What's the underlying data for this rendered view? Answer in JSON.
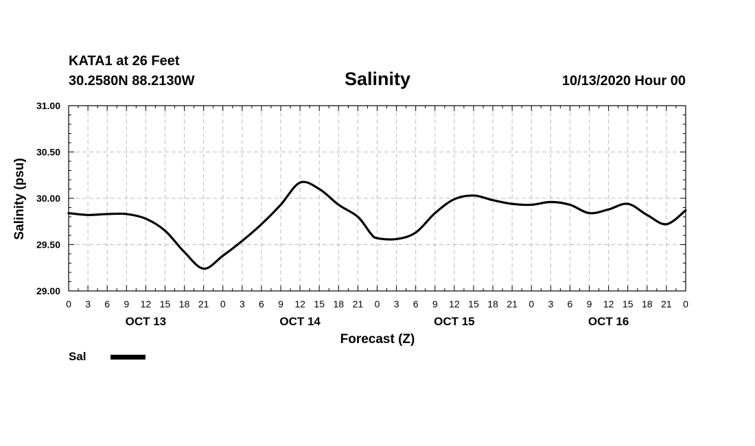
{
  "header": {
    "station": "KATA1 at 26 Feet",
    "coords": "30.2580N 88.2130W",
    "title": "Salinity",
    "issued": "10/13/2020 Hour 00"
  },
  "legend": {
    "label": "Sal"
  },
  "colors": {
    "line": "#000000",
    "grid": "#bbbbbb",
    "background": "#ffffff"
  },
  "chart_data": {
    "type": "line",
    "title": "Salinity",
    "xlabel": "Forecast (Z)",
    "ylabel": "Salinity (psu)",
    "ylim": [
      29.0,
      31.0
    ],
    "yticks": [
      "29.00",
      "29.50",
      "30.00",
      "30.50",
      "31.00"
    ],
    "xlim": [
      0,
      96
    ],
    "xtick_labels": [
      "0",
      "3",
      "6",
      "9",
      "12",
      "15",
      "18",
      "21",
      "0",
      "3",
      "6",
      "9",
      "12",
      "15",
      "18",
      "21",
      "0",
      "3",
      "6",
      "9",
      "12",
      "15",
      "18",
      "21",
      "0",
      "3",
      "6",
      "9",
      "12",
      "15",
      "18",
      "21",
      "0"
    ],
    "day_labels": [
      {
        "label": "OCT 13",
        "hour": 12
      },
      {
        "label": "OCT 14",
        "hour": 36
      },
      {
        "label": "OCT 15",
        "hour": 60
      },
      {
        "label": "OCT 16",
        "hour": 84
      }
    ],
    "grid": true,
    "legend_position": "bottom-left",
    "series": [
      {
        "name": "Sal",
        "x": [
          0,
          3,
          6,
          9,
          12,
          15,
          18,
          21,
          24,
          27,
          30,
          33,
          36,
          39,
          42,
          45,
          47,
          48,
          51,
          54,
          57,
          60,
          63,
          66,
          69,
          72,
          75,
          78,
          81,
          84,
          87,
          90,
          93,
          96
        ],
        "y": [
          29.84,
          29.82,
          29.83,
          29.83,
          29.78,
          29.65,
          29.42,
          29.24,
          29.38,
          29.54,
          29.72,
          29.93,
          30.17,
          30.1,
          29.93,
          29.8,
          29.62,
          29.57,
          29.56,
          29.63,
          29.84,
          29.99,
          30.03,
          29.98,
          29.94,
          29.93,
          29.96,
          29.93,
          29.84,
          29.88,
          29.94,
          29.82,
          29.72,
          29.87
        ]
      }
    ]
  }
}
